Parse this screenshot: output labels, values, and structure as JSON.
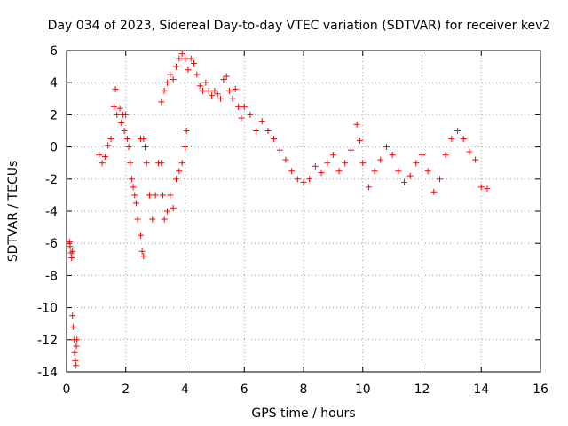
{
  "chart_data": {
    "type": "scatter",
    "title": "Day 034 of 2023, Sidereal Day-to-day VTEC variation (SDTVAR) for receiver kev2",
    "xlabel": "GPS time / hours",
    "ylabel": "SDTVAR / TECUs",
    "xlim": [
      0,
      16
    ],
    "ylim": [
      -14,
      6
    ],
    "x_ticks": [
      "0",
      "2",
      "4",
      "6",
      "8",
      "10",
      "12",
      "14",
      "16"
    ],
    "y_ticks": [
      "6",
      "4",
      "2",
      "0",
      "-2",
      "-4",
      "-6",
      "-8",
      "-10",
      "-12",
      "-14"
    ],
    "grid": true,
    "marker": "+",
    "series": [
      {
        "name": "SDTVAR",
        "color": "#ff0000",
        "points": [
          [
            0.1,
            -5.9
          ],
          [
            0.12,
            -6.2
          ],
          [
            0.15,
            -6.6
          ],
          [
            0.17,
            -6.9
          ],
          [
            0.2,
            -6.5
          ],
          [
            0.2,
            -10.5
          ],
          [
            0.22,
            -11.2
          ],
          [
            0.25,
            -12.0
          ],
          [
            0.27,
            -12.8
          ],
          [
            0.3,
            -13.3
          ],
          [
            0.32,
            -13.6
          ],
          [
            0.33,
            -12.4
          ],
          [
            0.35,
            -12.0
          ],
          [
            1.1,
            -0.5
          ],
          [
            1.2,
            -1.0
          ],
          [
            1.3,
            -0.6
          ],
          [
            1.4,
            0.1
          ],
          [
            1.5,
            0.5
          ],
          [
            1.6,
            2.5
          ],
          [
            1.65,
            3.6
          ],
          [
            1.7,
            2.0
          ],
          [
            1.8,
            2.4
          ],
          [
            1.85,
            1.5
          ],
          [
            1.9,
            2.0
          ],
          [
            1.95,
            1.0
          ],
          [
            2.0,
            2.0
          ],
          [
            2.05,
            0.5
          ],
          [
            2.1,
            0.0
          ],
          [
            2.15,
            -1.0
          ],
          [
            2.2,
            -2.0
          ],
          [
            2.25,
            -2.5
          ],
          [
            2.3,
            -3.0
          ],
          [
            2.35,
            -3.5
          ],
          [
            2.4,
            -4.5
          ],
          [
            2.5,
            -5.5
          ],
          [
            2.55,
            -6.5
          ],
          [
            2.6,
            -6.8
          ],
          [
            2.5,
            0.5
          ],
          [
            2.6,
            0.5
          ],
          [
            2.65,
            0.0
          ],
          [
            2.7,
            -1.0
          ],
          [
            2.8,
            -3.0
          ],
          [
            2.9,
            -4.5
          ],
          [
            3.0,
            -3.0
          ],
          [
            3.1,
            -1.0
          ],
          [
            3.2,
            -1.0
          ],
          [
            3.25,
            -3.0
          ],
          [
            3.3,
            -4.5
          ],
          [
            3.4,
            -4.0
          ],
          [
            3.5,
            -3.0
          ],
          [
            3.6,
            -3.8
          ],
          [
            3.7,
            -2.0
          ],
          [
            3.8,
            -1.5
          ],
          [
            3.9,
            -1.0
          ],
          [
            4.0,
            0.0
          ],
          [
            4.05,
            1.0
          ],
          [
            3.2,
            2.8
          ],
          [
            3.3,
            3.5
          ],
          [
            3.4,
            4.0
          ],
          [
            3.5,
            4.5
          ],
          [
            3.6,
            4.2
          ],
          [
            3.7,
            5.0
          ],
          [
            3.8,
            5.5
          ],
          [
            3.9,
            5.8
          ],
          [
            4.0,
            5.5
          ],
          [
            4.1,
            4.8
          ],
          [
            4.2,
            5.5
          ],
          [
            4.3,
            5.2
          ],
          [
            4.4,
            4.5
          ],
          [
            4.5,
            3.8
          ],
          [
            4.6,
            3.5
          ],
          [
            4.7,
            4.0
          ],
          [
            4.8,
            3.5
          ],
          [
            4.9,
            3.2
          ],
          [
            5.0,
            3.5
          ],
          [
            5.1,
            3.3
          ],
          [
            5.2,
            3.0
          ],
          [
            5.3,
            4.2
          ],
          [
            5.4,
            4.4
          ],
          [
            5.5,
            3.5
          ],
          [
            5.6,
            3.0
          ],
          [
            5.7,
            3.6
          ],
          [
            5.8,
            2.5
          ],
          [
            5.9,
            1.8
          ],
          [
            6.0,
            2.5
          ],
          [
            6.2,
            2.0
          ],
          [
            6.4,
            1.0
          ],
          [
            6.6,
            1.6
          ],
          [
            6.8,
            1.0
          ],
          [
            7.0,
            0.5
          ],
          [
            7.2,
            -0.2
          ],
          [
            7.4,
            -0.8
          ],
          [
            7.6,
            -1.5
          ],
          [
            7.8,
            -2.0
          ],
          [
            8.0,
            -2.2
          ],
          [
            8.2,
            -2.0
          ],
          [
            8.4,
            -1.2
          ],
          [
            8.6,
            -1.6
          ],
          [
            8.8,
            -1.0
          ],
          [
            9.0,
            -0.5
          ],
          [
            9.2,
            -1.5
          ],
          [
            9.4,
            -1.0
          ],
          [
            9.6,
            -0.2
          ],
          [
            9.8,
            1.4
          ],
          [
            9.9,
            0.4
          ],
          [
            10.0,
            -1.0
          ],
          [
            10.2,
            -2.5
          ],
          [
            10.4,
            -1.5
          ],
          [
            10.6,
            -0.8
          ],
          [
            10.8,
            0.0
          ],
          [
            11.0,
            -0.5
          ],
          [
            11.2,
            -1.5
          ],
          [
            11.4,
            -2.2
          ],
          [
            11.6,
            -1.8
          ],
          [
            11.8,
            -1.0
          ],
          [
            12.0,
            -0.5
          ],
          [
            12.2,
            -1.5
          ],
          [
            12.4,
            -2.8
          ],
          [
            12.6,
            -2.0
          ],
          [
            12.8,
            -0.5
          ],
          [
            13.0,
            0.5
          ],
          [
            13.2,
            1.0
          ],
          [
            13.4,
            0.5
          ],
          [
            13.6,
            -0.3
          ],
          [
            13.8,
            -0.8
          ],
          [
            14.0,
            -2.5
          ],
          [
            14.2,
            -2.6
          ]
        ]
      }
    ]
  }
}
